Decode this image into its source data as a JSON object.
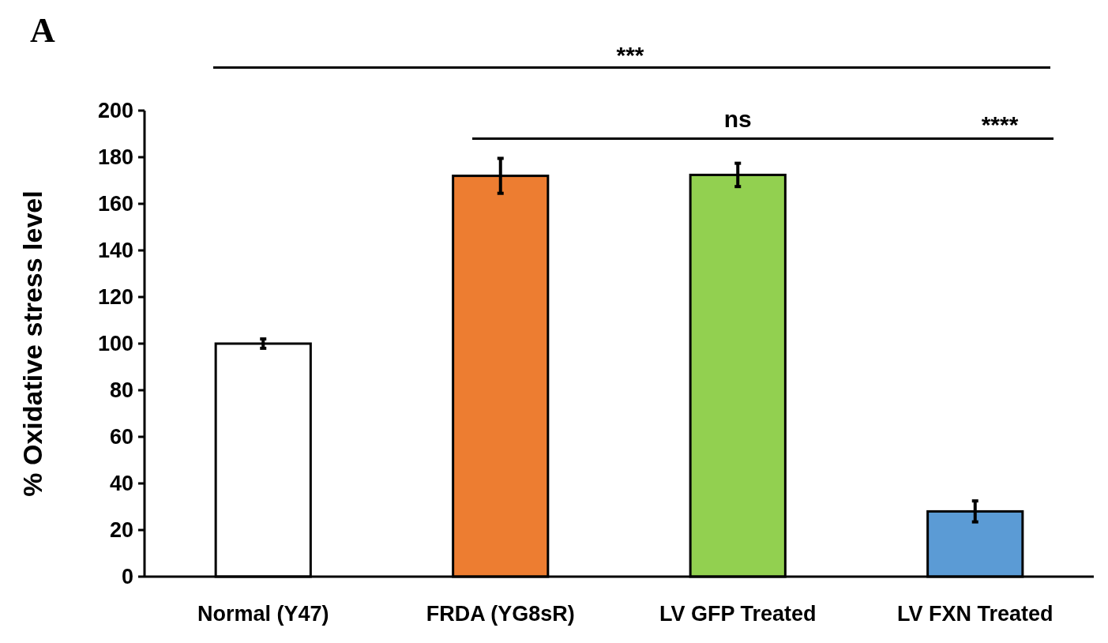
{
  "chart_data": {
    "type": "bar",
    "ylabel": "% Oxidative stress level",
    "categories": [
      "Normal (Y47)",
      "FRDA (YG8sR)",
      "LV GFP Treated",
      "LV FXN Treated"
    ],
    "values": [
      100,
      172,
      172.4,
      28
    ],
    "colors": [
      "#ffffff",
      "#ed7d31",
      "#92d050",
      "#5b9bd5"
    ],
    "errors": [
      2,
      7.5,
      5,
      4.5
    ],
    "ylim": [
      0,
      200
    ],
    "yticks": [
      0,
      20,
      40,
      60,
      80,
      100,
      120,
      140,
      160,
      180,
      200
    ],
    "annotations": [
      "A",
      "***",
      "ns",
      "****"
    ]
  }
}
